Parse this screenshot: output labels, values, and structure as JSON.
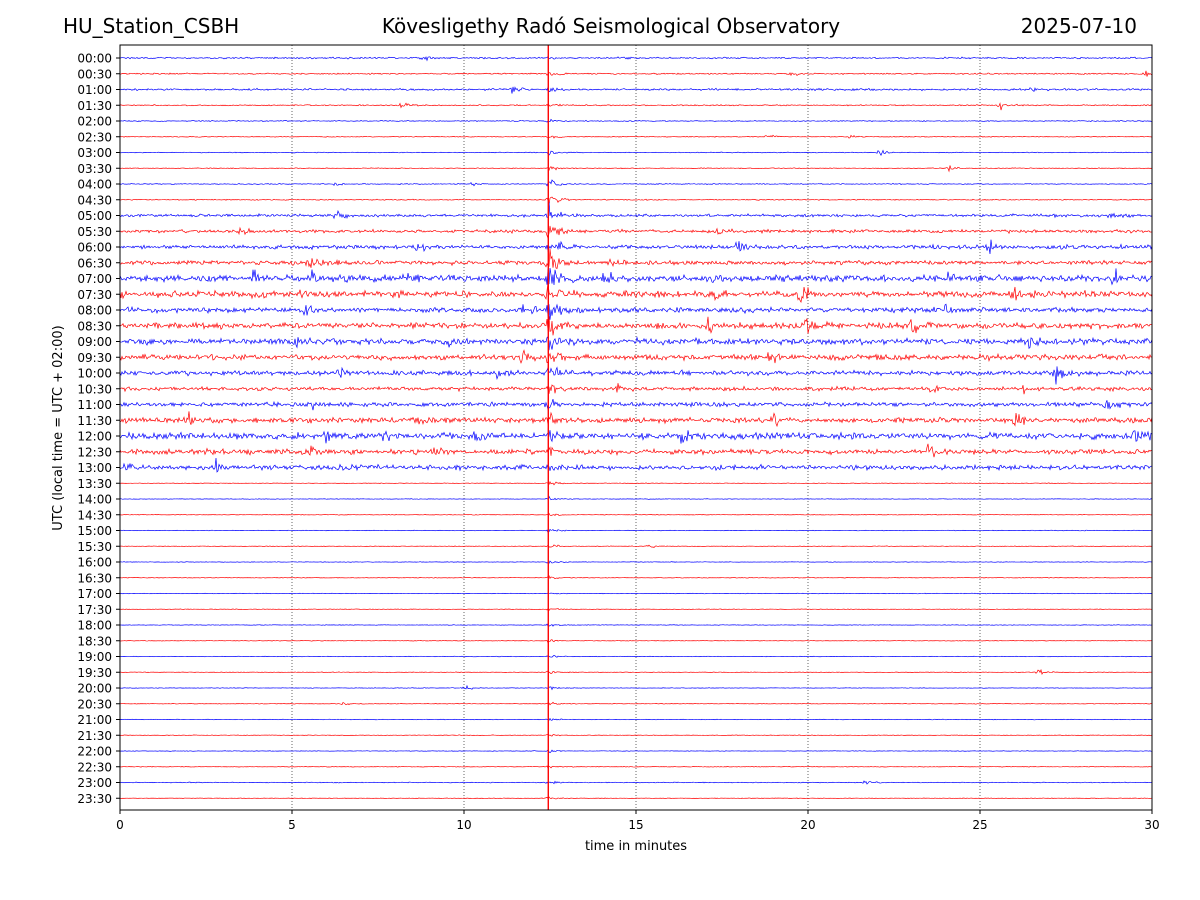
{
  "header": {
    "station": "HU_Station_CSBH",
    "title": "Kövesligethy Radó Seismological Observatory",
    "date": "2025-07-10"
  },
  "chart_data": {
    "type": "line",
    "xlabel": "time in minutes",
    "ylabel": "UTC (local time = UTC + 02:00)",
    "xlim": [
      0,
      30
    ],
    "x_ticks": [
      "0",
      "5",
      "10",
      "15",
      "20",
      "25",
      "30"
    ],
    "x_tick_values": [
      0,
      5,
      10,
      15,
      20,
      25,
      30
    ],
    "grid": "vertical dotted lines at x ticks",
    "row_labels": [
      "00:00",
      "00:30",
      "01:00",
      "01:30",
      "02:00",
      "02:30",
      "03:00",
      "03:30",
      "04:00",
      "04:30",
      "05:00",
      "05:30",
      "06:00",
      "06:30",
      "07:00",
      "07:30",
      "08:00",
      "08:30",
      "09:00",
      "09:30",
      "10:00",
      "10:30",
      "11:00",
      "11:30",
      "12:00",
      "12:30",
      "13:00",
      "13:30",
      "14:00",
      "14:30",
      "15:00",
      "15:30",
      "16:00",
      "16:30",
      "17:00",
      "17:30",
      "18:00",
      "18:30",
      "19:00",
      "19:30",
      "20:00",
      "20:30",
      "21:00",
      "21:30",
      "22:00",
      "22:30",
      "23:00",
      "23:30"
    ],
    "row_colors": [
      "#0000ff",
      "#ff0000"
    ],
    "event_line": {
      "x_minutes": 12.45,
      "color": "#ff0000"
    },
    "noise_level": [
      0.8,
      0.7,
      1.0,
      0.6,
      0.5,
      0.4,
      0.4,
      0.4,
      0.5,
      0.5,
      1.4,
      1.6,
      2.0,
      2.2,
      3.4,
      3.2,
      2.6,
      3.0,
      3.0,
      2.8,
      2.4,
      2.0,
      2.2,
      2.6,
      3.2,
      2.6,
      2.4,
      0.3,
      0.3,
      0.3,
      0.3,
      0.3,
      0.3,
      0.3,
      0.3,
      0.3,
      0.3,
      0.3,
      0.3,
      0.3,
      0.3,
      0.3,
      0.3,
      0.3,
      0.3,
      0.3,
      0.4,
      0.3
    ],
    "event_amplitude": [
      3,
      3,
      3,
      3,
      3,
      3,
      4,
      6,
      10,
      14,
      18,
      20,
      22,
      26,
      30,
      30,
      26,
      20,
      16,
      14,
      12,
      10,
      9,
      8,
      7,
      6,
      5,
      4,
      4,
      4,
      4,
      4,
      4,
      3,
      3,
      3,
      3,
      3,
      3,
      3,
      3,
      3,
      3,
      3,
      3,
      3,
      3,
      3
    ],
    "bursts": [
      {
        "row": 0,
        "x": 8.8,
        "a": 3
      },
      {
        "row": 0,
        "x": 14.5,
        "a": 2
      },
      {
        "row": 1,
        "x": 29.8,
        "a": 3
      },
      {
        "row": 1,
        "x": 19.5,
        "a": 2
      },
      {
        "row": 2,
        "x": 11.4,
        "a": 5
      },
      {
        "row": 2,
        "x": 26.5,
        "a": 3
      },
      {
        "row": 3,
        "x": 25.6,
        "a": 4
      },
      {
        "row": 3,
        "x": 8.2,
        "a": 3
      },
      {
        "row": 5,
        "x": 18.8,
        "a": 3
      },
      {
        "row": 5,
        "x": 21.2,
        "a": 3
      },
      {
        "row": 6,
        "x": 22.1,
        "a": 3
      },
      {
        "row": 7,
        "x": 24.1,
        "a": 3
      },
      {
        "row": 8,
        "x": 6.3,
        "a": 3
      },
      {
        "row": 8,
        "x": 10.2,
        "a": 3
      },
      {
        "row": 10,
        "x": 6.3,
        "a": 7
      },
      {
        "row": 10,
        "x": 28.8,
        "a": 4
      },
      {
        "row": 11,
        "x": 3.5,
        "a": 5
      },
      {
        "row": 11,
        "x": 17.4,
        "a": 4
      },
      {
        "row": 12,
        "x": 8.6,
        "a": 6
      },
      {
        "row": 12,
        "x": 17.9,
        "a": 6
      },
      {
        "row": 12,
        "x": 25.3,
        "a": 5
      },
      {
        "row": 13,
        "x": 5.5,
        "a": 5
      },
      {
        "row": 13,
        "x": 14.2,
        "a": 4
      },
      {
        "row": 14,
        "x": 3.9,
        "a": 9
      },
      {
        "row": 14,
        "x": 5.6,
        "a": 8
      },
      {
        "row": 14,
        "x": 8.3,
        "a": 8
      },
      {
        "row": 14,
        "x": 14.1,
        "a": 8
      },
      {
        "row": 14,
        "x": 24.1,
        "a": 8
      },
      {
        "row": 14,
        "x": 28.9,
        "a": 6
      },
      {
        "row": 15,
        "x": 5.3,
        "a": 6
      },
      {
        "row": 15,
        "x": 17.2,
        "a": 9
      },
      {
        "row": 15,
        "x": 19.8,
        "a": 10
      },
      {
        "row": 15,
        "x": 26.0,
        "a": 7
      },
      {
        "row": 16,
        "x": 5.3,
        "a": 6
      },
      {
        "row": 16,
        "x": 11.6,
        "a": 6
      },
      {
        "row": 16,
        "x": 24.0,
        "a": 6
      },
      {
        "row": 17,
        "x": 17.1,
        "a": 9
      },
      {
        "row": 17,
        "x": 20.0,
        "a": 8
      },
      {
        "row": 17,
        "x": 23.0,
        "a": 8
      },
      {
        "row": 18,
        "x": 5.1,
        "a": 7
      },
      {
        "row": 18,
        "x": 9.6,
        "a": 6
      },
      {
        "row": 18,
        "x": 26.4,
        "a": 6
      },
      {
        "row": 19,
        "x": 11.7,
        "a": 7
      },
      {
        "row": 19,
        "x": 18.9,
        "a": 7
      },
      {
        "row": 20,
        "x": 6.3,
        "a": 7
      },
      {
        "row": 20,
        "x": 11.0,
        "a": 6
      },
      {
        "row": 20,
        "x": 27.2,
        "a": 8
      },
      {
        "row": 21,
        "x": 14.5,
        "a": 5
      },
      {
        "row": 21,
        "x": 23.6,
        "a": 5
      },
      {
        "row": 21,
        "x": 26.2,
        "a": 5
      },
      {
        "row": 22,
        "x": 5.5,
        "a": 5
      },
      {
        "row": 22,
        "x": 28.7,
        "a": 9
      },
      {
        "row": 23,
        "x": 2.0,
        "a": 7
      },
      {
        "row": 23,
        "x": 8.6,
        "a": 8
      },
      {
        "row": 23,
        "x": 19.0,
        "a": 8
      },
      {
        "row": 23,
        "x": 26.0,
        "a": 7
      },
      {
        "row": 23,
        "x": 29.6,
        "a": 6
      },
      {
        "row": 24,
        "x": 6.0,
        "a": 8
      },
      {
        "row": 24,
        "x": 7.7,
        "a": 8
      },
      {
        "row": 24,
        "x": 10.4,
        "a": 7
      },
      {
        "row": 24,
        "x": 16.3,
        "a": 7
      },
      {
        "row": 24,
        "x": 29.5,
        "a": 9
      },
      {
        "row": 25,
        "x": 5.6,
        "a": 7
      },
      {
        "row": 25,
        "x": 9.0,
        "a": 6
      },
      {
        "row": 25,
        "x": 23.5,
        "a": 6
      },
      {
        "row": 26,
        "x": 2.8,
        "a": 8
      },
      {
        "row": 26,
        "x": 0.2,
        "a": 6
      },
      {
        "row": 26,
        "x": 6.5,
        "a": 4
      },
      {
        "row": 31,
        "x": 15.4,
        "a": 2
      },
      {
        "row": 39,
        "x": 26.7,
        "a": 4
      },
      {
        "row": 40,
        "x": 10.0,
        "a": 3
      },
      {
        "row": 41,
        "x": 6.5,
        "a": 2
      },
      {
        "row": 46,
        "x": 21.7,
        "a": 3
      }
    ]
  }
}
